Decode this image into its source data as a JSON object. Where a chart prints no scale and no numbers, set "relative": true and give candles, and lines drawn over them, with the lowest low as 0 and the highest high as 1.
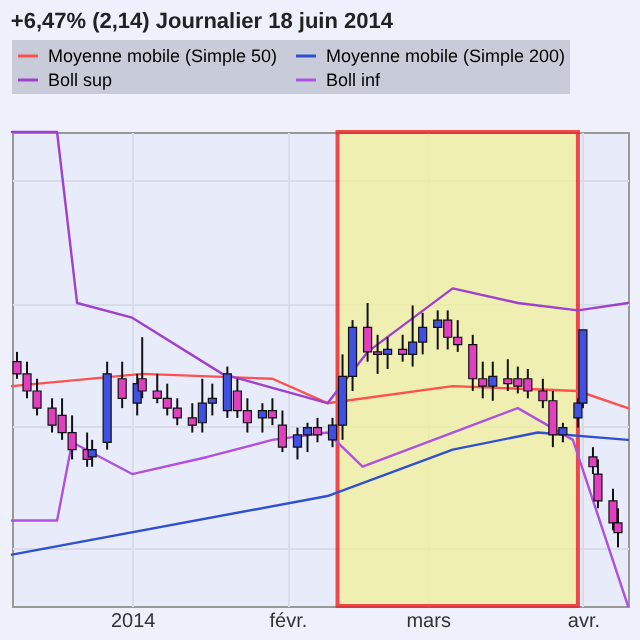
{
  "chart_data": {
    "type": "candlestick",
    "title": "+6,47% (2,14)   Journalier   18 juin 2014",
    "relative": true,
    "grid": true,
    "legend": "top left",
    "xlim": [
      "2013-12-08",
      "2014-04-10"
    ],
    "xticks": [
      {
        "value": "2014-01-01",
        "label": "2014"
      },
      {
        "value": "2014-02-01",
        "label": "févr."
      },
      {
        "value": "2014-03-01",
        "label": "mars"
      },
      {
        "value": "2014-04-01",
        "label": "avr."
      }
    ],
    "x": [
      "2013-12-09",
      "2013-12-11",
      "2013-12-13",
      "2013-12-16",
      "2013-12-18",
      "2013-12-20",
      "2013-12-23",
      "2013-12-24",
      "2013-12-27",
      "2013-12-30",
      "2014-01-02",
      "2014-01-03",
      "2014-01-06",
      "2014-01-08",
      "2014-01-10",
      "2014-01-13",
      "2014-01-15",
      "2014-01-17",
      "2014-01-20",
      "2014-01-22",
      "2014-01-24",
      "2014-01-27",
      "2014-01-29",
      "2014-01-31",
      "2014-02-03",
      "2014-02-05",
      "2014-02-07",
      "2014-02-10",
      "2014-02-12",
      "2014-02-14",
      "2014-02-17",
      "2014-02-19",
      "2014-02-21",
      "2014-02-24",
      "2014-02-26",
      "2014-02-28",
      "2014-03-03",
      "2014-03-05",
      "2014-03-07",
      "2014-03-10",
      "2014-03-12",
      "2014-03-14",
      "2014-03-17",
      "2014-03-19",
      "2014-03-21",
      "2014-03-24",
      "2014-03-26",
      "2014-03-28",
      "2014-03-31",
      "2014-04-01",
      "2014-04-03",
      "2014-04-04",
      "2014-04-07",
      "2014-04-08"
    ],
    "ohlc": [
      [
        0.76,
        0.8,
        0.69,
        0.71
      ],
      [
        0.71,
        0.76,
        0.61,
        0.64
      ],
      [
        0.64,
        0.69,
        0.54,
        0.57
      ],
      [
        0.57,
        0.61,
        0.47,
        0.5
      ],
      [
        0.54,
        0.61,
        0.44,
        0.47
      ],
      [
        0.47,
        0.54,
        0.36,
        0.4
      ],
      [
        0.4,
        0.47,
        0.33,
        0.36
      ],
      [
        0.37,
        0.44,
        0.33,
        0.4
      ],
      [
        0.43,
        0.76,
        0.4,
        0.71
      ],
      [
        0.69,
        0.76,
        0.57,
        0.61
      ],
      [
        0.59,
        0.71,
        0.54,
        0.67
      ],
      [
        0.69,
        0.86,
        0.61,
        0.64
      ],
      [
        0.64,
        0.71,
        0.59,
        0.61
      ],
      [
        0.61,
        0.67,
        0.54,
        0.57
      ],
      [
        0.57,
        0.61,
        0.5,
        0.53
      ],
      [
        0.53,
        0.59,
        0.47,
        0.5
      ],
      [
        0.51,
        0.69,
        0.47,
        0.59
      ],
      [
        0.59,
        0.67,
        0.54,
        0.61
      ],
      [
        0.56,
        0.74,
        0.53,
        0.71
      ],
      [
        0.64,
        0.69,
        0.53,
        0.56
      ],
      [
        0.56,
        0.61,
        0.47,
        0.51
      ],
      [
        0.53,
        0.59,
        0.47,
        0.56
      ],
      [
        0.56,
        0.61,
        0.5,
        0.53
      ],
      [
        0.5,
        0.56,
        0.39,
        0.41
      ],
      [
        0.41,
        0.49,
        0.36,
        0.46
      ],
      [
        0.46,
        0.51,
        0.39,
        0.49
      ],
      [
        0.49,
        0.53,
        0.43,
        0.46
      ],
      [
        0.44,
        0.53,
        0.41,
        0.5
      ],
      [
        0.5,
        0.79,
        0.44,
        0.7
      ],
      [
        0.7,
        0.93,
        0.64,
        0.9
      ],
      [
        0.9,
        1.0,
        0.76,
        0.8
      ],
      [
        0.8,
        0.87,
        0.71,
        0.79
      ],
      [
        0.79,
        0.86,
        0.73,
        0.81
      ],
      [
        0.81,
        0.87,
        0.76,
        0.79
      ],
      [
        0.79,
        0.99,
        0.74,
        0.84
      ],
      [
        0.84,
        0.96,
        0.79,
        0.9
      ],
      [
        0.9,
        0.97,
        0.81,
        0.93
      ],
      [
        0.93,
        0.97,
        0.81,
        0.86
      ],
      [
        0.86,
        0.93,
        0.8,
        0.83
      ],
      [
        0.83,
        0.87,
        0.64,
        0.69
      ],
      [
        0.69,
        0.76,
        0.61,
        0.66
      ],
      [
        0.66,
        0.76,
        0.6,
        0.7
      ],
      [
        0.69,
        0.77,
        0.64,
        0.67
      ],
      [
        0.69,
        0.74,
        0.63,
        0.66
      ],
      [
        0.69,
        0.73,
        0.61,
        0.64
      ],
      [
        0.64,
        0.69,
        0.57,
        0.6
      ],
      [
        0.6,
        0.64,
        0.41,
        0.46
      ],
      [
        0.46,
        0.51,
        0.43,
        0.49
      ],
      [
        0.53,
        0.61,
        0.49,
        0.59
      ],
      [
        0.59,
        0.89,
        0.57,
        0.89
      ],
      [
        0.37,
        0.41,
        0.3,
        0.33
      ],
      [
        0.3,
        0.36,
        0.16,
        0.19
      ],
      [
        0.19,
        0.24,
        0.07,
        0.1
      ],
      [
        0.1,
        0.16,
        0.0,
        0.06
      ]
    ],
    "colors": [
      "#e040c0",
      "#e040c0",
      "#e040c0",
      "#e040c0",
      "#e040c0",
      "#e040c0",
      "#e040c0",
      "#4050e0",
      "#4050e0",
      "#e040c0",
      "#4050e0",
      "#e040c0",
      "#e040c0",
      "#e040c0",
      "#e040c0",
      "#e040c0",
      "#4050e0",
      "#4050e0",
      "#4050e0",
      "#e040c0",
      "#e040c0",
      "#4050e0",
      "#e040c0",
      "#e040c0",
      "#4050e0",
      "#4050e0",
      "#e040c0",
      "#4050e0",
      "#4050e0",
      "#4050e0",
      "#e040c0",
      "#e040c0",
      "#4050e0",
      "#e040c0",
      "#4050e0",
      "#4050e0",
      "#4050e0",
      "#e040c0",
      "#e040c0",
      "#e040c0",
      "#e040c0",
      "#4050e0",
      "#e040c0",
      "#e040c0",
      "#e040c0",
      "#e040c0",
      "#e040c0",
      "#4050e0",
      "#4050e0",
      "#4050e0",
      "#e040c0",
      "#e040c0",
      "#e040c0",
      "#e040c0"
    ],
    "series": [
      {
        "name": "Moyenne mobile (Simple 50)",
        "type": "line",
        "color": "#ff5050",
        "x": [
          "2013-12-08",
          "2014-01-03",
          "2014-01-29",
          "2014-02-09",
          "2014-03-06",
          "2014-03-31",
          "2014-04-10"
        ],
        "values": [
          0.66,
          0.71,
          0.69,
          0.59,
          0.66,
          0.64,
          0.57
        ]
      },
      {
        "name": "Moyenne mobile (Simple 200)",
        "type": "line",
        "color": "#3050d0",
        "x": [
          "2013-12-08",
          "2014-02-09",
          "2014-03-06",
          "2014-03-23",
          "2014-04-10"
        ],
        "values": [
          -0.03,
          0.21,
          0.4,
          0.47,
          0.44
        ]
      },
      {
        "name": "Boll sup",
        "type": "line",
        "color": "#a040d0",
        "x": [
          "2013-12-08",
          "2013-12-17",
          "2013-12-21",
          "2014-01-01",
          "2014-01-19",
          "2014-02-09",
          "2014-02-17",
          "2014-03-06",
          "2014-03-19",
          "2014-03-31",
          "2014-04-10"
        ],
        "values": [
          1.7,
          1.7,
          1.0,
          0.94,
          0.71,
          0.59,
          0.8,
          1.06,
          1.0,
          0.97,
          1.0
        ]
      },
      {
        "name": "Boll inf",
        "type": "line",
        "color": "#b050e0",
        "x": [
          "2013-12-08",
          "2013-12-17",
          "2013-12-20",
          "2014-01-01",
          "2014-01-16",
          "2014-01-29",
          "2014-02-09",
          "2014-02-16",
          "2014-03-06",
          "2014-03-19",
          "2014-03-30",
          "2014-04-10"
        ],
        "values": [
          0.11,
          0.11,
          0.43,
          0.3,
          0.37,
          0.44,
          0.47,
          0.33,
          0.47,
          0.57,
          0.44,
          -0.24
        ]
      }
    ],
    "bands": [
      {
        "axis": "x",
        "from": "2014-02-11",
        "to": "2014-03-31",
        "color": "#f0f0a0"
      }
    ]
  }
}
